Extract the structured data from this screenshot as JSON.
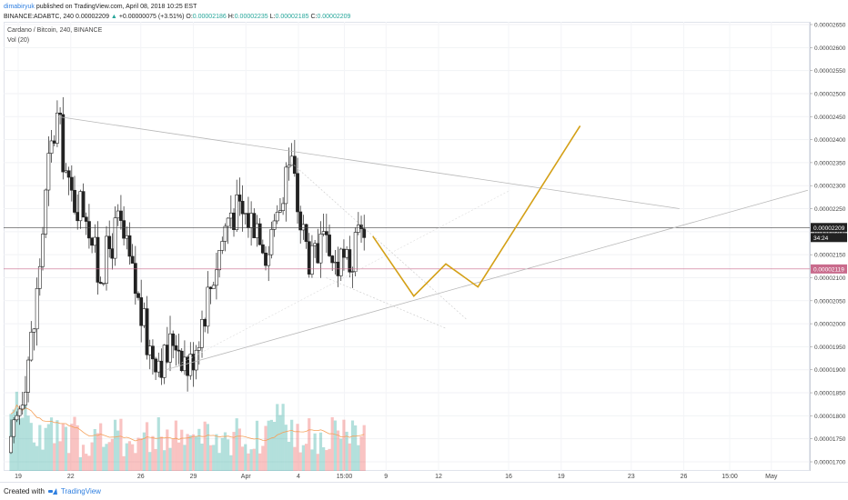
{
  "header": {
    "author": "dimabiryuk",
    "published_text": "published on TradingView.com, April 08, 2018 10:25 EST",
    "symbol_prefix": "BINANCE:ADABTC, 240",
    "last_price": "0.00002209",
    "change": "+0.00000075 (+3.51%)",
    "open_label": "O:",
    "open": "0.00002186",
    "high_label": "H:",
    "high": "0.00002235",
    "low_label": "L:",
    "low": "0.00002185",
    "close_label": "C:",
    "close": "0.00002209"
  },
  "legend": {
    "title": "Cardano / Bitcoin, 240, BINANCE",
    "volume": "Vol (20)"
  },
  "footer": {
    "created_with": "Created with",
    "brand": "TradingView"
  },
  "colors": {
    "up": "#26a69a",
    "down": "#ef5350",
    "candle": "#222222",
    "projection": "#d4a017",
    "trendline": "#b8b8b8",
    "support_line": "#c96b8c"
  },
  "chart_data": {
    "type": "candlestick",
    "price_scale": {
      "min": 1.7e-05,
      "max": 2.65e-05,
      "ticks": [
        "0.00002650",
        "0.00002600",
        "0.00002550",
        "0.00002500",
        "0.00002450",
        "0.00002400",
        "0.00002350",
        "0.00002300",
        "0.00002250",
        "0.00002200",
        "0.00002150",
        "0.00002100",
        "0.00002050",
        "0.00002000",
        "0.00001950",
        "0.00001900",
        "0.00001850",
        "0.00001800",
        "0.00001750",
        "0.00001700"
      ]
    },
    "x_ticks": [
      "19",
      "22",
      "26",
      "29",
      "Apr",
      "4",
      "15:00",
      "9",
      "12",
      "16",
      "19",
      "23",
      "26",
      "15:00",
      "May"
    ],
    "current_price_label": "0.00002209",
    "countdown_label": "34:24",
    "support_label": "0.00002119",
    "current_price": 2.209e-05,
    "support_price": 2.119e-05,
    "period_start": "2018-03-19 00:00",
    "candle_count": 123,
    "price_path": [
      [
        "2018-03-19 00:00",
        1.72e-05
      ],
      [
        "2018-03-20 08:00",
        2e-05
      ],
      [
        "2018-03-21 04:00",
        2.35e-05
      ],
      [
        "2018-03-21 16:00",
        2.45e-05
      ],
      [
        "2018-03-22 08:00",
        2.28e-05
      ],
      [
        "2018-03-23 08:00",
        2.25e-05
      ],
      [
        "2018-03-24 00:00",
        2.1e-05
      ],
      [
        "2018-03-25 04:00",
        2.22e-05
      ],
      [
        "2018-03-25 20:00",
        2.12e-05
      ],
      [
        "2018-03-26 20:00",
        1.95e-05
      ],
      [
        "2018-03-27 20:00",
        1.92e-05
      ],
      [
        "2018-03-28 08:00",
        1.98e-05
      ],
      [
        "2018-03-29 04:00",
        1.9e-05
      ],
      [
        "2018-03-30 12:00",
        2.1e-05
      ],
      [
        "2018-03-31 12:00",
        2.25e-05
      ],
      [
        "2018-04-02 04:00",
        2.22e-05
      ],
      [
        "2018-04-02 16:00",
        2.15e-05
      ],
      [
        "2018-04-03 12:00",
        2.3e-05
      ],
      [
        "2018-04-04 00:00",
        2.36e-05
      ],
      [
        "2018-04-04 12:00",
        2.22e-05
      ],
      [
        "2018-04-05 04:00",
        2.13e-05
      ],
      [
        "2018-04-05 20:00",
        2.16e-05
      ],
      [
        "2018-04-06 20:00",
        2.12e-05
      ],
      [
        "2018-04-07 12:00",
        2.14e-05
      ],
      [
        "2018-04-08 04:00",
        2.21e-05
      ]
    ],
    "volume_moving_average_label": "Vol (20)",
    "drawings": {
      "descending_trendline": [
        [
          "2018-03-21 16:00",
          2.45e-05
        ],
        [
          "2018-04-26 04:00",
          2.25e-05
        ]
      ],
      "ascending_trendline": [
        [
          "2018-03-27 20:00",
          1.9e-05
        ],
        [
          "2018-05-03 12:00",
          2.29e-05
        ]
      ],
      "projection_path": [
        [
          "2018-04-08 16:00",
          2.19e-05
        ],
        [
          "2018-04-11 00:00",
          2.06e-05
        ],
        [
          "2018-04-12 20:00",
          2.13e-05
        ],
        [
          "2018-04-14 16:00",
          2.08e-05
        ],
        [
          "2018-04-20 12:00",
          2.43e-05
        ]
      ]
    }
  }
}
